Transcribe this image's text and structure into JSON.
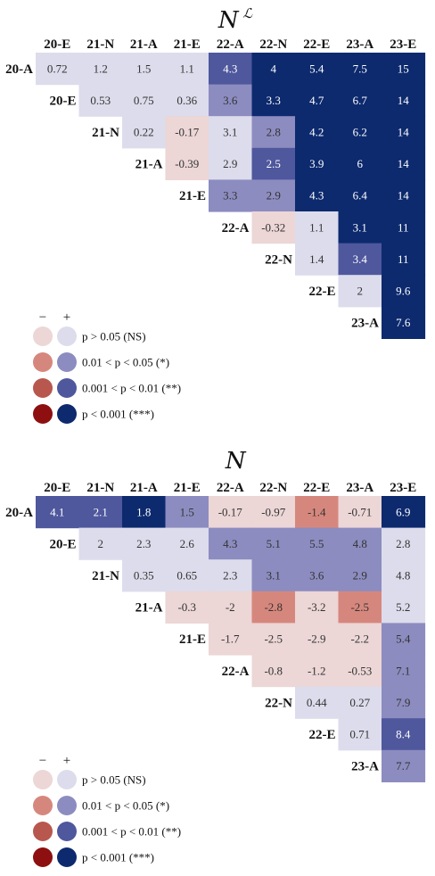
{
  "labels": [
    "20-A",
    "20-E",
    "21-N",
    "21-A",
    "21-E",
    "22-A",
    "22-N",
    "22-E",
    "23-A",
    "23-E"
  ],
  "palette": {
    "pos": [
      "#dcdcec",
      "#8c8cc0",
      "#4f579d",
      "#0d2a6e"
    ],
    "neg": [
      "#ecd6d6",
      "#d6877d",
      "#b8574e",
      "#8e0f0f"
    ]
  },
  "legend": {
    "minus": "−",
    "plus": "+",
    "items": [
      "p > 0.05 (NS)",
      "0.01 < p < 0.05 (*)",
      "0.001 < p < 0.01 (**)",
      "p < 0.001 (***)"
    ]
  },
  "chart_data": [
    {
      "type": "heatmap",
      "title": "N",
      "title_superscript": "ℒ",
      "x_categories": [
        "20-E",
        "21-N",
        "21-A",
        "21-E",
        "22-A",
        "22-N",
        "22-E",
        "23-A",
        "23-E"
      ],
      "y_categories": [
        "20-A",
        "20-E",
        "21-N",
        "21-A",
        "21-E",
        "22-A",
        "22-N",
        "22-E",
        "23-A"
      ],
      "rows": [
        [
          {
            "v": "0.72",
            "s": 0
          },
          {
            "v": "1.2",
            "s": 0
          },
          {
            "v": "1.5",
            "s": 0
          },
          {
            "v": "1.1",
            "s": 0
          },
          {
            "v": "4.3",
            "s": 2
          },
          {
            "v": "4",
            "s": 3
          },
          {
            "v": "5.4",
            "s": 3
          },
          {
            "v": "7.5",
            "s": 3
          },
          {
            "v": "15",
            "s": 3
          }
        ],
        [
          {
            "v": "0.53",
            "s": 0
          },
          {
            "v": "0.75",
            "s": 0
          },
          {
            "v": "0.36",
            "s": 0
          },
          {
            "v": "3.6",
            "s": 1
          },
          {
            "v": "3.3",
            "s": 3
          },
          {
            "v": "4.7",
            "s": 3
          },
          {
            "v": "6.7",
            "s": 3
          },
          {
            "v": "14",
            "s": 3
          }
        ],
        [
          {
            "v": "0.22",
            "s": 0
          },
          {
            "v": "-0.17",
            "s": 0
          },
          {
            "v": "3.1",
            "s": 0
          },
          {
            "v": "2.8",
            "s": 1
          },
          {
            "v": "4.2",
            "s": 3
          },
          {
            "v": "6.2",
            "s": 3
          },
          {
            "v": "14",
            "s": 3
          }
        ],
        [
          {
            "v": "-0.39",
            "s": 0
          },
          {
            "v": "2.9",
            "s": 0
          },
          {
            "v": "2.5",
            "s": 2
          },
          {
            "v": "3.9",
            "s": 3
          },
          {
            "v": "6",
            "s": 3
          },
          {
            "v": "14",
            "s": 3
          }
        ],
        [
          {
            "v": "3.3",
            "s": 1
          },
          {
            "v": "2.9",
            "s": 1
          },
          {
            "v": "4.3",
            "s": 3
          },
          {
            "v": "6.4",
            "s": 3
          },
          {
            "v": "14",
            "s": 3
          }
        ],
        [
          {
            "v": "-0.32",
            "s": 0
          },
          {
            "v": "1.1",
            "s": 0
          },
          {
            "v": "3.1",
            "s": 3
          },
          {
            "v": "11",
            "s": 3
          }
        ],
        [
          {
            "v": "1.4",
            "s": 0
          },
          {
            "v": "3.4",
            "s": 2
          },
          {
            "v": "11",
            "s": 3
          }
        ],
        [
          {
            "v": "2",
            "s": 0
          },
          {
            "v": "9.6",
            "s": 3
          }
        ],
        [
          {
            "v": "7.6",
            "s": 3
          }
        ]
      ]
    },
    {
      "type": "heatmap",
      "title": "N",
      "title_superscript": "",
      "x_categories": [
        "20-E",
        "21-N",
        "21-A",
        "21-E",
        "22-A",
        "22-N",
        "22-E",
        "23-A",
        "23-E"
      ],
      "y_categories": [
        "20-A",
        "20-E",
        "21-N",
        "21-A",
        "21-E",
        "22-A",
        "22-N",
        "22-E",
        "23-A"
      ],
      "rows": [
        [
          {
            "v": "4.1",
            "s": 2
          },
          {
            "v": "2.1",
            "s": 2
          },
          {
            "v": "1.8",
            "s": 3
          },
          {
            "v": "1.5",
            "s": 1
          },
          {
            "v": "-0.17",
            "s": 0
          },
          {
            "v": "-0.97",
            "s": 0
          },
          {
            "v": "-1.4",
            "s": 1
          },
          {
            "v": "-0.71",
            "s": 0
          },
          {
            "v": "6.9",
            "s": 3
          }
        ],
        [
          {
            "v": "2",
            "s": 0
          },
          {
            "v": "2.3",
            "s": 0
          },
          {
            "v": "2.6",
            "s": 0
          },
          {
            "v": "4.3",
            "s": 1
          },
          {
            "v": "5.1",
            "s": 1
          },
          {
            "v": "5.5",
            "s": 1
          },
          {
            "v": "4.8",
            "s": 1
          },
          {
            "v": "2.8",
            "s": 0
          }
        ],
        [
          {
            "v": "0.35",
            "s": 0
          },
          {
            "v": "0.65",
            "s": 0
          },
          {
            "v": "2.3",
            "s": 0
          },
          {
            "v": "3.1",
            "s": 1
          },
          {
            "v": "3.6",
            "s": 1
          },
          {
            "v": "2.9",
            "s": 1
          },
          {
            "v": "4.8",
            "s": 0
          }
        ],
        [
          {
            "v": "-0.3",
            "s": 0
          },
          {
            "v": "-2",
            "s": 0
          },
          {
            "v": "-2.8",
            "s": 1
          },
          {
            "v": "-3.2",
            "s": 0
          },
          {
            "v": "-2.5",
            "s": 1
          },
          {
            "v": "5.2",
            "s": 0
          }
        ],
        [
          {
            "v": "-1.7",
            "s": 0
          },
          {
            "v": "-2.5",
            "s": 0
          },
          {
            "v": "-2.9",
            "s": 0
          },
          {
            "v": "-2.2",
            "s": 0
          },
          {
            "v": "5.4",
            "s": 1
          }
        ],
        [
          {
            "v": "-0.8",
            "s": 0
          },
          {
            "v": "-1.2",
            "s": 0
          },
          {
            "v": "-0.53",
            "s": 0
          },
          {
            "v": "7.1",
            "s": 1
          }
        ],
        [
          {
            "v": "0.44",
            "s": 0
          },
          {
            "v": "0.27",
            "s": 0
          },
          {
            "v": "7.9",
            "s": 1
          }
        ],
        [
          {
            "v": "0.71",
            "s": 0
          },
          {
            "v": "8.4",
            "s": 2
          }
        ],
        [
          {
            "v": "7.7",
            "s": 1
          }
        ]
      ]
    }
  ]
}
